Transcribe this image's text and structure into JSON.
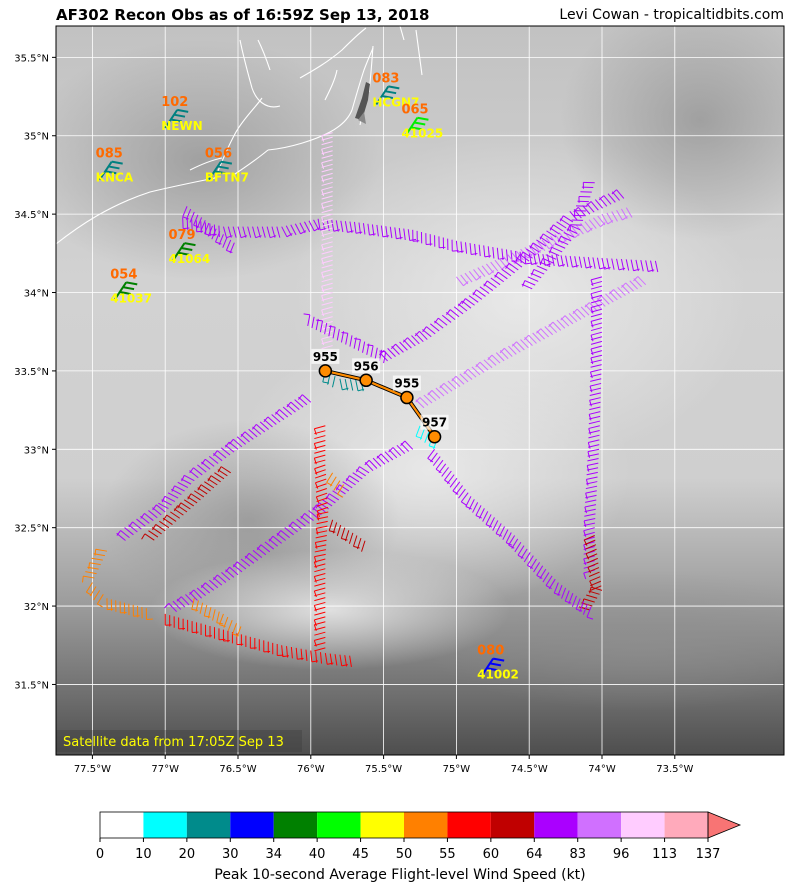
{
  "header": {
    "title": "AF302 Recon Obs as of 16:59Z Sep 13, 2018",
    "credit": "Levi Cowan - tropicaltidbits.com"
  },
  "satellite_note": "Satellite data from 17:05Z Sep 13",
  "axes": {
    "lon_range": [
      -77.75,
      -72.75
    ],
    "lat_range": [
      31.05,
      35.7
    ],
    "lon_ticks": [
      {
        "v": -77.5,
        "label": "77.5°W"
      },
      {
        "v": -77.0,
        "label": "77°W"
      },
      {
        "v": -76.5,
        "label": "76.5°W"
      },
      {
        "v": -76.0,
        "label": "76°W"
      },
      {
        "v": -75.5,
        "label": "75.5°W"
      },
      {
        "v": -75.0,
        "label": "75°W"
      },
      {
        "v": -74.5,
        "label": "74.5°W"
      },
      {
        "v": -74.0,
        "label": "74°W"
      },
      {
        "v": -73.5,
        "label": "73.5°W"
      }
    ],
    "lat_ticks": [
      {
        "v": 35.5,
        "label": "35.5°N"
      },
      {
        "v": 35.0,
        "label": "35°N"
      },
      {
        "v": 34.5,
        "label": "34.5°N"
      },
      {
        "v": 34.0,
        "label": "34°N"
      },
      {
        "v": 33.5,
        "label": "33.5°N"
      },
      {
        "v": 33.0,
        "label": "33°N"
      },
      {
        "v": 32.5,
        "label": "32.5°N"
      },
      {
        "v": 32.0,
        "label": "32°N"
      },
      {
        "v": 31.5,
        "label": "31.5°N"
      }
    ],
    "grid": true
  },
  "colorbar": {
    "label": "Peak 10-second Average Flight-level Wind Speed (kt)",
    "ticks": [
      "0",
      "10",
      "20",
      "30",
      "34",
      "40",
      "45",
      "50",
      "55",
      "60",
      "64",
      "83",
      "96",
      "113",
      "137"
    ],
    "colors": [
      "#ffffff",
      "#00ffff",
      "#008b8b",
      "#0000ff",
      "#008000",
      "#00ff00",
      "#ffff00",
      "#ff8000",
      "#ff0000",
      "#c00000",
      "#aa00ff",
      "#d070ff",
      "#ffccff",
      "#ffaabb"
    ],
    "extend_color": "#f87474"
  },
  "stations": [
    {
      "id": "HCGN7",
      "value": "083",
      "lon": -75.55,
      "lat": 35.2,
      "color": "#008080"
    },
    {
      "id": "41025",
      "value": "065",
      "lon": -75.35,
      "lat": 35.0,
      "color": "#00ee00"
    },
    {
      "id": "NEWN",
      "value": "102",
      "lon": -77.0,
      "lat": 35.05,
      "color": "#008080"
    },
    {
      "id": "BFTN7",
      "value": "056",
      "lon": -76.7,
      "lat": 34.72,
      "color": "#008080"
    },
    {
      "id": "KNCA",
      "value": "085",
      "lon": -77.45,
      "lat": 34.72,
      "color": "#008080"
    },
    {
      "id": "41064",
      "value": "079",
      "lon": -76.95,
      "lat": 34.2,
      "color": "#008000"
    },
    {
      "id": "41037",
      "value": "054",
      "lon": -77.35,
      "lat": 33.95,
      "color": "#008000"
    },
    {
      "id": "41002",
      "value": "080",
      "lon": -74.83,
      "lat": 31.55,
      "color": "#0000ff"
    }
  ],
  "center_fixes": [
    {
      "pressure": "955",
      "lon": -75.9,
      "lat": 33.5
    },
    {
      "pressure": "956",
      "lon": -75.62,
      "lat": 33.44
    },
    {
      "pressure": "955",
      "lon": -75.34,
      "lat": 33.33
    },
    {
      "pressure": "957",
      "lon": -75.15,
      "lat": 33.08
    }
  ],
  "flight_legs": [
    {
      "speed_kt": 70,
      "path": [
        [
          -76.88,
          34.48
        ],
        [
          -76.6,
          34.42
        ],
        [
          -76.2,
          34.42
        ],
        [
          -75.95,
          34.47
        ],
        [
          -75.7,
          34.45
        ],
        [
          -75.3,
          34.4
        ],
        [
          -75.0,
          34.33
        ],
        [
          -74.5,
          34.25
        ],
        [
          -74.0,
          34.22
        ],
        [
          -73.6,
          34.2
        ]
      ]
    },
    {
      "speed_kt": 65,
      "path": [
        [
          -76.85,
          34.55
        ],
        [
          -76.5,
          34.3
        ]
      ]
    },
    {
      "speed_kt": 98,
      "path": [
        [
          -75.85,
          35.02
        ],
        [
          -75.85,
          34.5
        ],
        [
          -75.85,
          34.0
        ],
        [
          -75.85,
          33.6
        ]
      ]
    },
    {
      "speed_kt": 88,
      "path": [
        [
          -75.0,
          34.1
        ],
        [
          -74.5,
          34.3
        ],
        [
          -74.0,
          34.5
        ],
        [
          -73.8,
          34.55
        ]
      ]
    },
    {
      "speed_kt": 85,
      "path": [
        [
          -73.7,
          34.05
        ],
        [
          -74.2,
          33.8
        ],
        [
          -74.7,
          33.55
        ],
        [
          -75.25,
          33.25
        ]
      ]
    },
    {
      "speed_kt": 72,
      "path": [
        [
          -73.85,
          34.6
        ],
        [
          -74.2,
          34.45
        ],
        [
          -74.5,
          34.2
        ],
        [
          -74.9,
          33.9
        ],
        [
          -75.2,
          33.7
        ],
        [
          -75.5,
          33.55
        ],
        [
          -76.05,
          33.8
        ]
      ]
    },
    {
      "speed_kt": 66,
      "path": [
        [
          -74.05,
          34.7
        ],
        [
          -74.15,
          34.4
        ],
        [
          -74.5,
          34.0
        ]
      ]
    },
    {
      "speed_kt": 75,
      "path": [
        [
          -74.0,
          34.1
        ],
        [
          -74.0,
          33.6
        ],
        [
          -74.02,
          33.0
        ],
        [
          -74.05,
          32.5
        ],
        [
          -74.05,
          32.2
        ]
      ]
    },
    {
      "speed_kt": 62,
      "path": [
        [
          -74.05,
          32.45
        ],
        [
          -74.0,
          32.1
        ],
        [
          -74.1,
          31.95
        ]
      ]
    },
    {
      "speed_kt": 78,
      "path": [
        [
          -75.15,
          33.0
        ],
        [
          -74.9,
          32.7
        ],
        [
          -74.6,
          32.45
        ],
        [
          -74.3,
          32.15
        ],
        [
          -74.05,
          31.98
        ]
      ]
    },
    {
      "speed_kt": 74,
      "path": [
        [
          -76.0,
          33.3
        ],
        [
          -76.5,
          33.0
        ],
        [
          -76.8,
          32.8
        ],
        [
          -77.0,
          32.6
        ],
        [
          -77.3,
          32.4
        ]
      ]
    },
    {
      "speed_kt": 72,
      "path": [
        [
          -75.3,
          33.0
        ],
        [
          -75.6,
          32.85
        ],
        [
          -75.9,
          32.6
        ],
        [
          -76.2,
          32.4
        ],
        [
          -76.5,
          32.2
        ],
        [
          -76.75,
          32.05
        ],
        [
          -76.95,
          31.95
        ]
      ]
    },
    {
      "speed_kt": 60,
      "path": [
        [
          -76.55,
          32.85
        ],
        [
          -76.85,
          32.6
        ],
        [
          -77.1,
          32.4
        ]
      ]
    },
    {
      "speed_kt": 52,
      "path": [
        [
          -77.4,
          32.35
        ],
        [
          -77.5,
          32.15
        ],
        [
          -77.4,
          32.05
        ],
        [
          -77.1,
          31.98
        ]
      ]
    },
    {
      "speed_kt": 56,
      "path": [
        [
          -77.0,
          31.95
        ],
        [
          -76.6,
          31.85
        ],
        [
          -76.2,
          31.75
        ],
        [
          -75.9,
          31.7
        ],
        [
          -75.7,
          31.68
        ]
      ]
    },
    {
      "speed_kt": 50,
      "path": [
        [
          -76.8,
          32.05
        ],
        [
          -76.6,
          31.95
        ],
        [
          -76.45,
          31.85
        ]
      ]
    },
    {
      "speed_kt": 58,
      "path": [
        [
          -75.9,
          33.15
        ],
        [
          -75.9,
          32.9
        ],
        [
          -75.88,
          32.6
        ],
        [
          -75.9,
          32.3
        ],
        [
          -75.9,
          31.9
        ],
        [
          -75.9,
          31.7
        ]
      ]
    },
    {
      "speed_kt": 52,
      "path": [
        [
          -75.85,
          32.85
        ],
        [
          -75.75,
          32.75
        ]
      ]
    },
    {
      "speed_kt": 60,
      "path": [
        [
          -75.85,
          32.55
        ],
        [
          -75.6,
          32.4
        ]
      ]
    },
    {
      "speed_kt": 25,
      "path": [
        [
          -75.9,
          33.5
        ],
        [
          -75.8,
          33.45
        ],
        [
          -75.62,
          33.44
        ]
      ]
    },
    {
      "speed_kt": 15,
      "path": [
        [
          -75.25,
          33.15
        ],
        [
          -75.1,
          33.05
        ]
      ]
    }
  ]
}
